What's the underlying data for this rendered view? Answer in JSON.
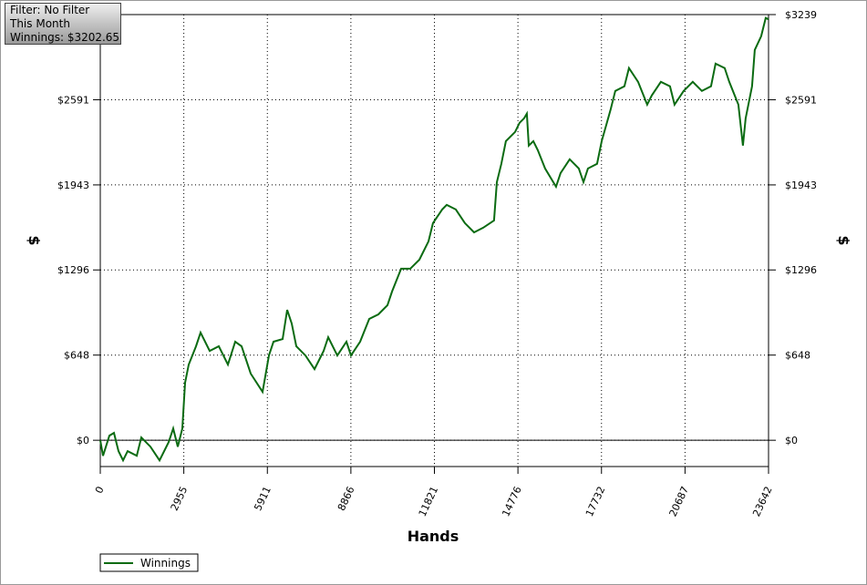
{
  "chart_data": {
    "type": "line",
    "info": [
      "Filter: No Filter",
      "This Month",
      "Winnings: $3202.65"
    ],
    "xlabel": "Hands",
    "ylabel": "$",
    "y2label": "$",
    "xlim": [
      0,
      23642
    ],
    "xticks": [
      0,
      2955,
      5911,
      8866,
      11821,
      14776,
      17732,
      20687,
      23642
    ],
    "ylim": [
      -200,
      3239
    ],
    "yticks": [
      {
        "value": 0,
        "label": "$0"
      },
      {
        "value": 648,
        "label": "$648"
      },
      {
        "value": 1296,
        "label": "$1296"
      },
      {
        "value": 1943,
        "label": "$1943"
      },
      {
        "value": 2591,
        "label": "$2591"
      },
      {
        "value": 3239,
        "label": "$3239"
      }
    ],
    "grid": true,
    "legend": "bottom-left",
    "series": [
      {
        "name": "Winnings",
        "color": "#0b6b12",
        "x": [
          0,
          97,
          323,
          484,
          645,
          806,
          968,
          1290,
          1451,
          1774,
          2096,
          2419,
          2580,
          2741,
          2903,
          2999,
          3128,
          3386,
          3548,
          3870,
          4193,
          4515,
          4773,
          4999,
          5321,
          5741,
          5966,
          6128,
          6450,
          6611,
          6773,
          6934,
          7256,
          7579,
          7901,
          8063,
          8385,
          8708,
          8869,
          9191,
          9514,
          9836,
          10159,
          10320,
          10643,
          10965,
          11288,
          11610,
          11771,
          12094,
          12255,
          12578,
          12900,
          13223,
          13545,
          13932,
          14029,
          14190,
          14351,
          14674,
          14835,
          14996,
          15093,
          15158,
          15319,
          15480,
          15738,
          16125,
          16286,
          16609,
          16931,
          17093,
          17254,
          17576,
          17738,
          18060,
          18221,
          18544,
          18705,
          19028,
          19350,
          19511,
          19834,
          20156,
          20318,
          20640,
          20963,
          21285,
          21608,
          21769,
          22091,
          22253,
          22575,
          22736,
          22833,
          23059,
          23156,
          23381,
          23542,
          23642
        ],
        "values": [
          0,
          -118,
          35,
          56,
          -83,
          -153,
          -83,
          -118,
          21,
          -49,
          -153,
          -14,
          90,
          -49,
          90,
          437,
          576,
          715,
          819,
          680,
          715,
          576,
          750,
          715,
          507,
          368,
          645,
          750,
          770,
          992,
          888,
          715,
          645,
          541,
          680,
          784,
          645,
          750,
          645,
          750,
          923,
          958,
          1027,
          1131,
          1305,
          1305,
          1374,
          1513,
          1652,
          1756,
          1791,
          1756,
          1652,
          1582,
          1617,
          1673,
          1964,
          2103,
          2276,
          2346,
          2415,
          2450,
          2485,
          2242,
          2276,
          2207,
          2068,
          1929,
          2033,
          2138,
          2068,
          1964,
          2068,
          2103,
          2276,
          2519,
          2658,
          2693,
          2832,
          2727,
          2554,
          2623,
          2727,
          2693,
          2554,
          2658,
          2727,
          2658,
          2693,
          2866,
          2832,
          2727,
          2554,
          2242,
          2450,
          2693,
          2970,
          3074,
          3213,
          3202.65
        ]
      }
    ]
  }
}
